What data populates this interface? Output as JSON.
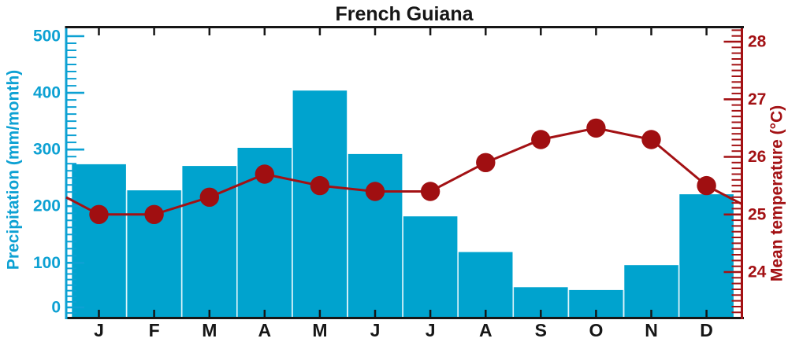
{
  "title": "French Guiana",
  "colors": {
    "precip_bar": "#00a3ce",
    "precip_axis": "#0da1d3",
    "temp_red": "#a31114",
    "temp_dot": "#a00f11",
    "frame_black": "#161616",
    "bar_separator": "#dff4fa"
  },
  "chart_data": {
    "type": "bar+line (dual axis climate chart)",
    "title": "French Guiana",
    "categories": [
      "J",
      "F",
      "M",
      "A",
      "M",
      "J",
      "J",
      "A",
      "S",
      "O",
      "N",
      "D"
    ],
    "series": [
      {
        "name": "Precipitation",
        "type": "bar",
        "axis": "left",
        "unit": "mm/month",
        "values": [
          274,
          228,
          271,
          303,
          404,
          292,
          182,
          119,
          57,
          52,
          96,
          221
        ]
      },
      {
        "name": "Mean temperature",
        "type": "line",
        "axis": "right",
        "unit": "°C",
        "values": [
          25.0,
          25.0,
          25.3,
          25.7,
          25.5,
          25.4,
          25.4,
          25.9,
          26.3,
          26.5,
          26.3,
          25.5
        ]
      }
    ],
    "left_axis": {
      "label": "Precipitation (mm/month)",
      "tick_labels": [
        "0",
        "100",
        "200",
        "300",
        "400",
        "500"
      ],
      "ticks": [
        0,
        100,
        200,
        300,
        400,
        500
      ],
      "range": [
        0,
        500
      ],
      "minor_per_division": 8
    },
    "right_axis": {
      "label": "Mean temperature (°C)",
      "tick_labels": [
        "24",
        "25",
        "26",
        "27",
        "28"
      ],
      "ticks": [
        24,
        25,
        26,
        27,
        28
      ],
      "range": [
        23.2,
        28.25
      ],
      "minor_step": 0.1
    },
    "grid": false,
    "legend": "none",
    "line_wrap": "cyclic (line extends to frame edges toward Dec/Jan means, ~25.25 °C at edges)"
  }
}
